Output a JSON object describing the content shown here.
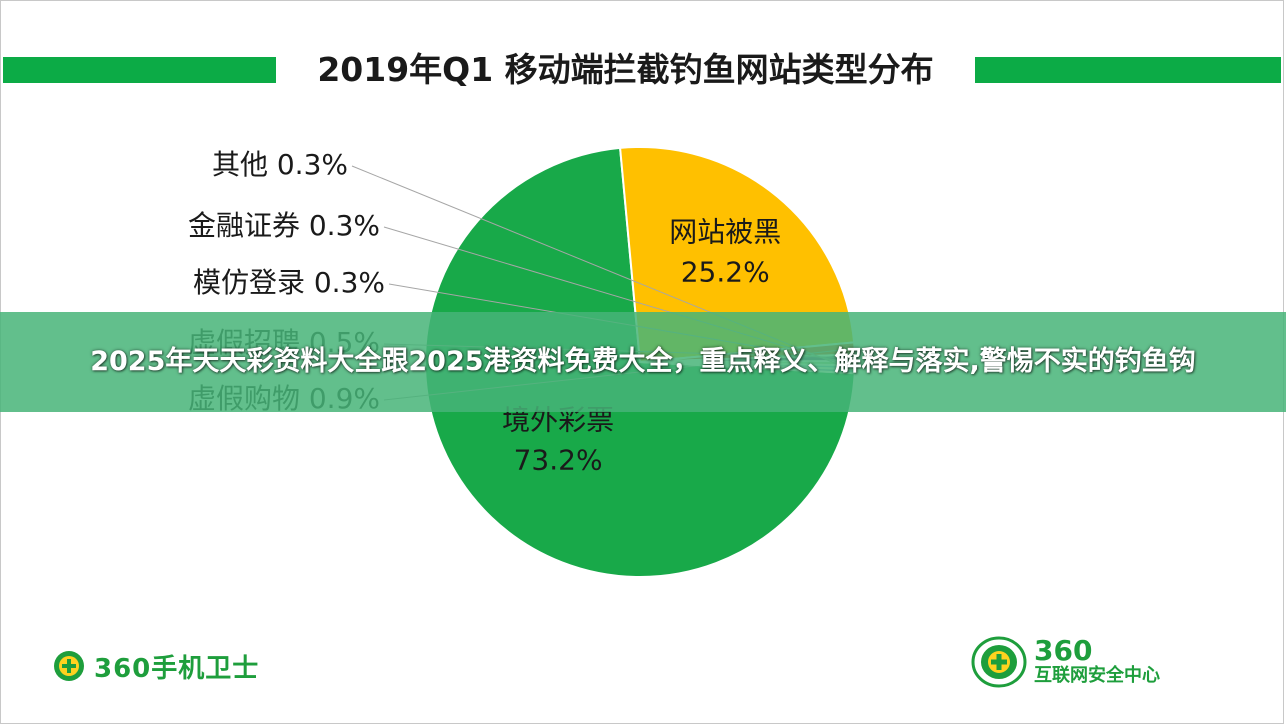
{
  "chart_data": {
    "type": "pie",
    "title": "2019年Q1 移动端拦截钓鱼网站类型分布",
    "slices": [
      {
        "name": "境外彩票",
        "value": 73.2,
        "label": "境外彩票",
        "value_label": "73.2%",
        "color": "#18a949"
      },
      {
        "name": "网站被黑",
        "value": 25.2,
        "label": "网站被黑",
        "value_label": "25.2%",
        "color": "#ffc000"
      },
      {
        "name": "虚假购物",
        "value": 0.9,
        "label": "虚假购物 0.9%",
        "color": "#e05a24"
      },
      {
        "name": "虚假招聘",
        "value": 0.5,
        "label": "虚假招聘 0.5%",
        "color": "#7f4f9c"
      },
      {
        "name": "模仿登录",
        "value": 0.3,
        "label": "模仿登录 0.3%",
        "color": "#a9d18e"
      },
      {
        "name": "金融证券",
        "value": 0.3,
        "label": "金融证券 0.3%",
        "color": "#9dc3e6"
      },
      {
        "name": "其他",
        "value": 0.3,
        "label": "其他 0.3%",
        "color": "#8aa9d6"
      }
    ]
  },
  "banner": {
    "text": "2025年天天彩资料大全跟2025港资料免费大全，重点释义、解释与落实,警惕不实的钓鱼钩"
  },
  "logos": {
    "left_brand": "360手机卫士",
    "right_brand_num": "360",
    "right_brand_sub": "互联网安全中心"
  },
  "colors": {
    "accent_green": "#0cab46",
    "brand_green": "#1e9e3c"
  }
}
